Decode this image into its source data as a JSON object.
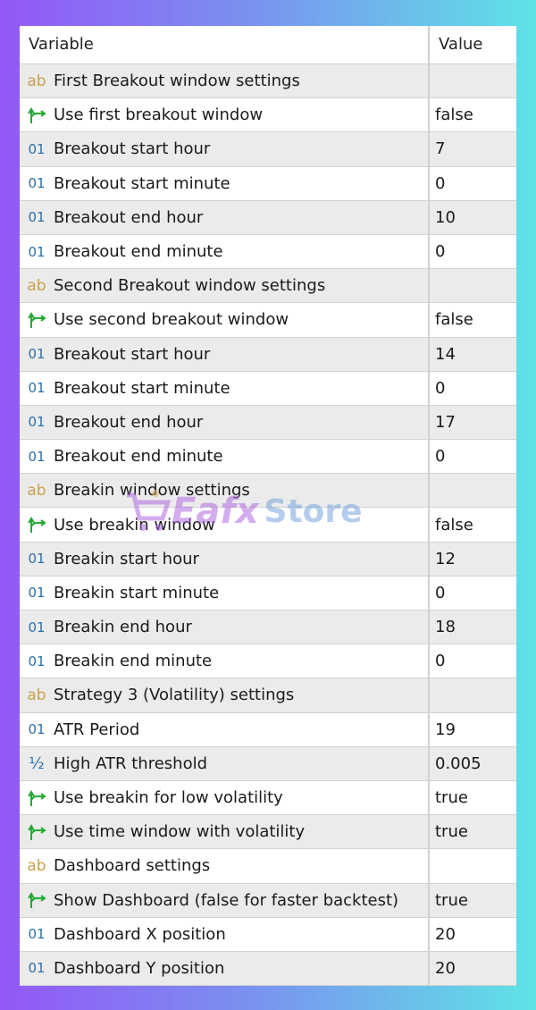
{
  "header": {
    "variable": "Variable",
    "value": "Value"
  },
  "colors": {
    "group_icon": "#c9a24a",
    "bool_icon": "#22aa33",
    "int_icon": "#2e6fa8"
  },
  "rows": [
    {
      "type": "group",
      "icon": "ab-string-icon",
      "label": "First Breakout window settings",
      "value": ""
    },
    {
      "type": "bool",
      "icon": "bool-arrow-icon",
      "label": "Use first breakout window",
      "value": "false"
    },
    {
      "type": "int",
      "icon": "int-01-icon",
      "label": "Breakout start hour",
      "value": "7"
    },
    {
      "type": "int",
      "icon": "int-01-icon",
      "label": "Breakout start minute",
      "value": "0"
    },
    {
      "type": "int",
      "icon": "int-01-icon",
      "label": "Breakout end hour",
      "value": "10"
    },
    {
      "type": "int",
      "icon": "int-01-icon",
      "label": "Breakout end minute",
      "value": "0"
    },
    {
      "type": "group",
      "icon": "ab-string-icon",
      "label": "Second Breakout window settings",
      "value": ""
    },
    {
      "type": "bool",
      "icon": "bool-arrow-icon",
      "label": "Use second breakout window",
      "value": "false"
    },
    {
      "type": "int",
      "icon": "int-01-icon",
      "label": "Breakout start hour",
      "value": "14"
    },
    {
      "type": "int",
      "icon": "int-01-icon",
      "label": "Breakout start minute",
      "value": "0"
    },
    {
      "type": "int",
      "icon": "int-01-icon",
      "label": "Breakout end hour",
      "value": "17"
    },
    {
      "type": "int",
      "icon": "int-01-icon",
      "label": "Breakout end minute",
      "value": "0"
    },
    {
      "type": "group",
      "icon": "ab-string-icon",
      "label": "Breakin window settings",
      "value": ""
    },
    {
      "type": "bool",
      "icon": "bool-arrow-icon",
      "label": "Use breakin window",
      "value": "false"
    },
    {
      "type": "int",
      "icon": "int-01-icon",
      "label": "Breakin start hour",
      "value": "12"
    },
    {
      "type": "int",
      "icon": "int-01-icon",
      "label": "Breakin start minute",
      "value": "0"
    },
    {
      "type": "int",
      "icon": "int-01-icon",
      "label": "Breakin end hour",
      "value": "18"
    },
    {
      "type": "int",
      "icon": "int-01-icon",
      "label": "Breakin end minute",
      "value": "0"
    },
    {
      "type": "group",
      "icon": "ab-string-icon",
      "label": "Strategy 3 (Volatility) settings",
      "value": ""
    },
    {
      "type": "int",
      "icon": "int-01-icon",
      "label": "ATR Period",
      "value": "19"
    },
    {
      "type": "double",
      "icon": "double-half-icon",
      "label": "High ATR threshold",
      "value": "0.005"
    },
    {
      "type": "bool",
      "icon": "bool-arrow-icon",
      "label": "Use breakin for low volatility",
      "value": "true"
    },
    {
      "type": "bool",
      "icon": "bool-arrow-icon",
      "label": "Use time window with volatility",
      "value": "true"
    },
    {
      "type": "group",
      "icon": "ab-string-icon",
      "label": "Dashboard settings",
      "value": ""
    },
    {
      "type": "bool",
      "icon": "bool-arrow-icon",
      "label": "Show Dashboard (false for faster backtest)",
      "value": "true"
    },
    {
      "type": "int",
      "icon": "int-01-icon",
      "label": "Dashboard X position",
      "value": "20"
    },
    {
      "type": "int",
      "icon": "int-01-icon",
      "label": "Dashboard Y position",
      "value": "20"
    }
  ],
  "watermark": {
    "brand": "Eafx",
    "suffix": "Store"
  }
}
